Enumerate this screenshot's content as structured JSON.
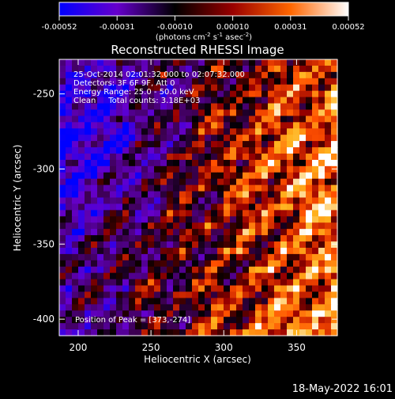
{
  "chart_data": {
    "type": "heatmap",
    "title": "Reconstructed RHESSI Image",
    "xlabel": "Heliocentric X (arcsec)",
    "ylabel": "Heliocentric Y (arcsec)",
    "xlim": [
      187,
      378
    ],
    "ylim": [
      -411,
      -227
    ],
    "x_ticks": [
      200,
      250,
      300,
      350
    ],
    "y_ticks": [
      -250,
      -300,
      -350,
      -400
    ],
    "colorbar": {
      "range": [
        -0.00052,
        0.00052
      ],
      "ticks": [
        "-0.00052",
        "-0.00031",
        "-0.00010",
        "0.00010",
        "0.00031",
        "0.00052"
      ],
      "units_text": "(photons cm",
      "units_exp1": "-2",
      "units_mid": " s",
      "units_exp2": "-1",
      "units_mid2": " asec",
      "units_exp3": "-2",
      "units_end": ")",
      "colors": [
        "#0000ff",
        "#6600cc",
        "#000000",
        "#990000",
        "#ff6600",
        "#ffffff"
      ]
    },
    "annotations": [
      "25-Oct-2014 02:01:32.000 to 02:07:32.000",
      "Detectors: 3F 6F 9F, Att 0",
      "Energy Range: 25.0 - 50.0 keV",
      "Clean     Total counts: 3.18E+03"
    ],
    "peak_label": "Position of Peak = [373,-274]",
    "grid": false
  },
  "timestamp": "18-May-2022 16:01"
}
